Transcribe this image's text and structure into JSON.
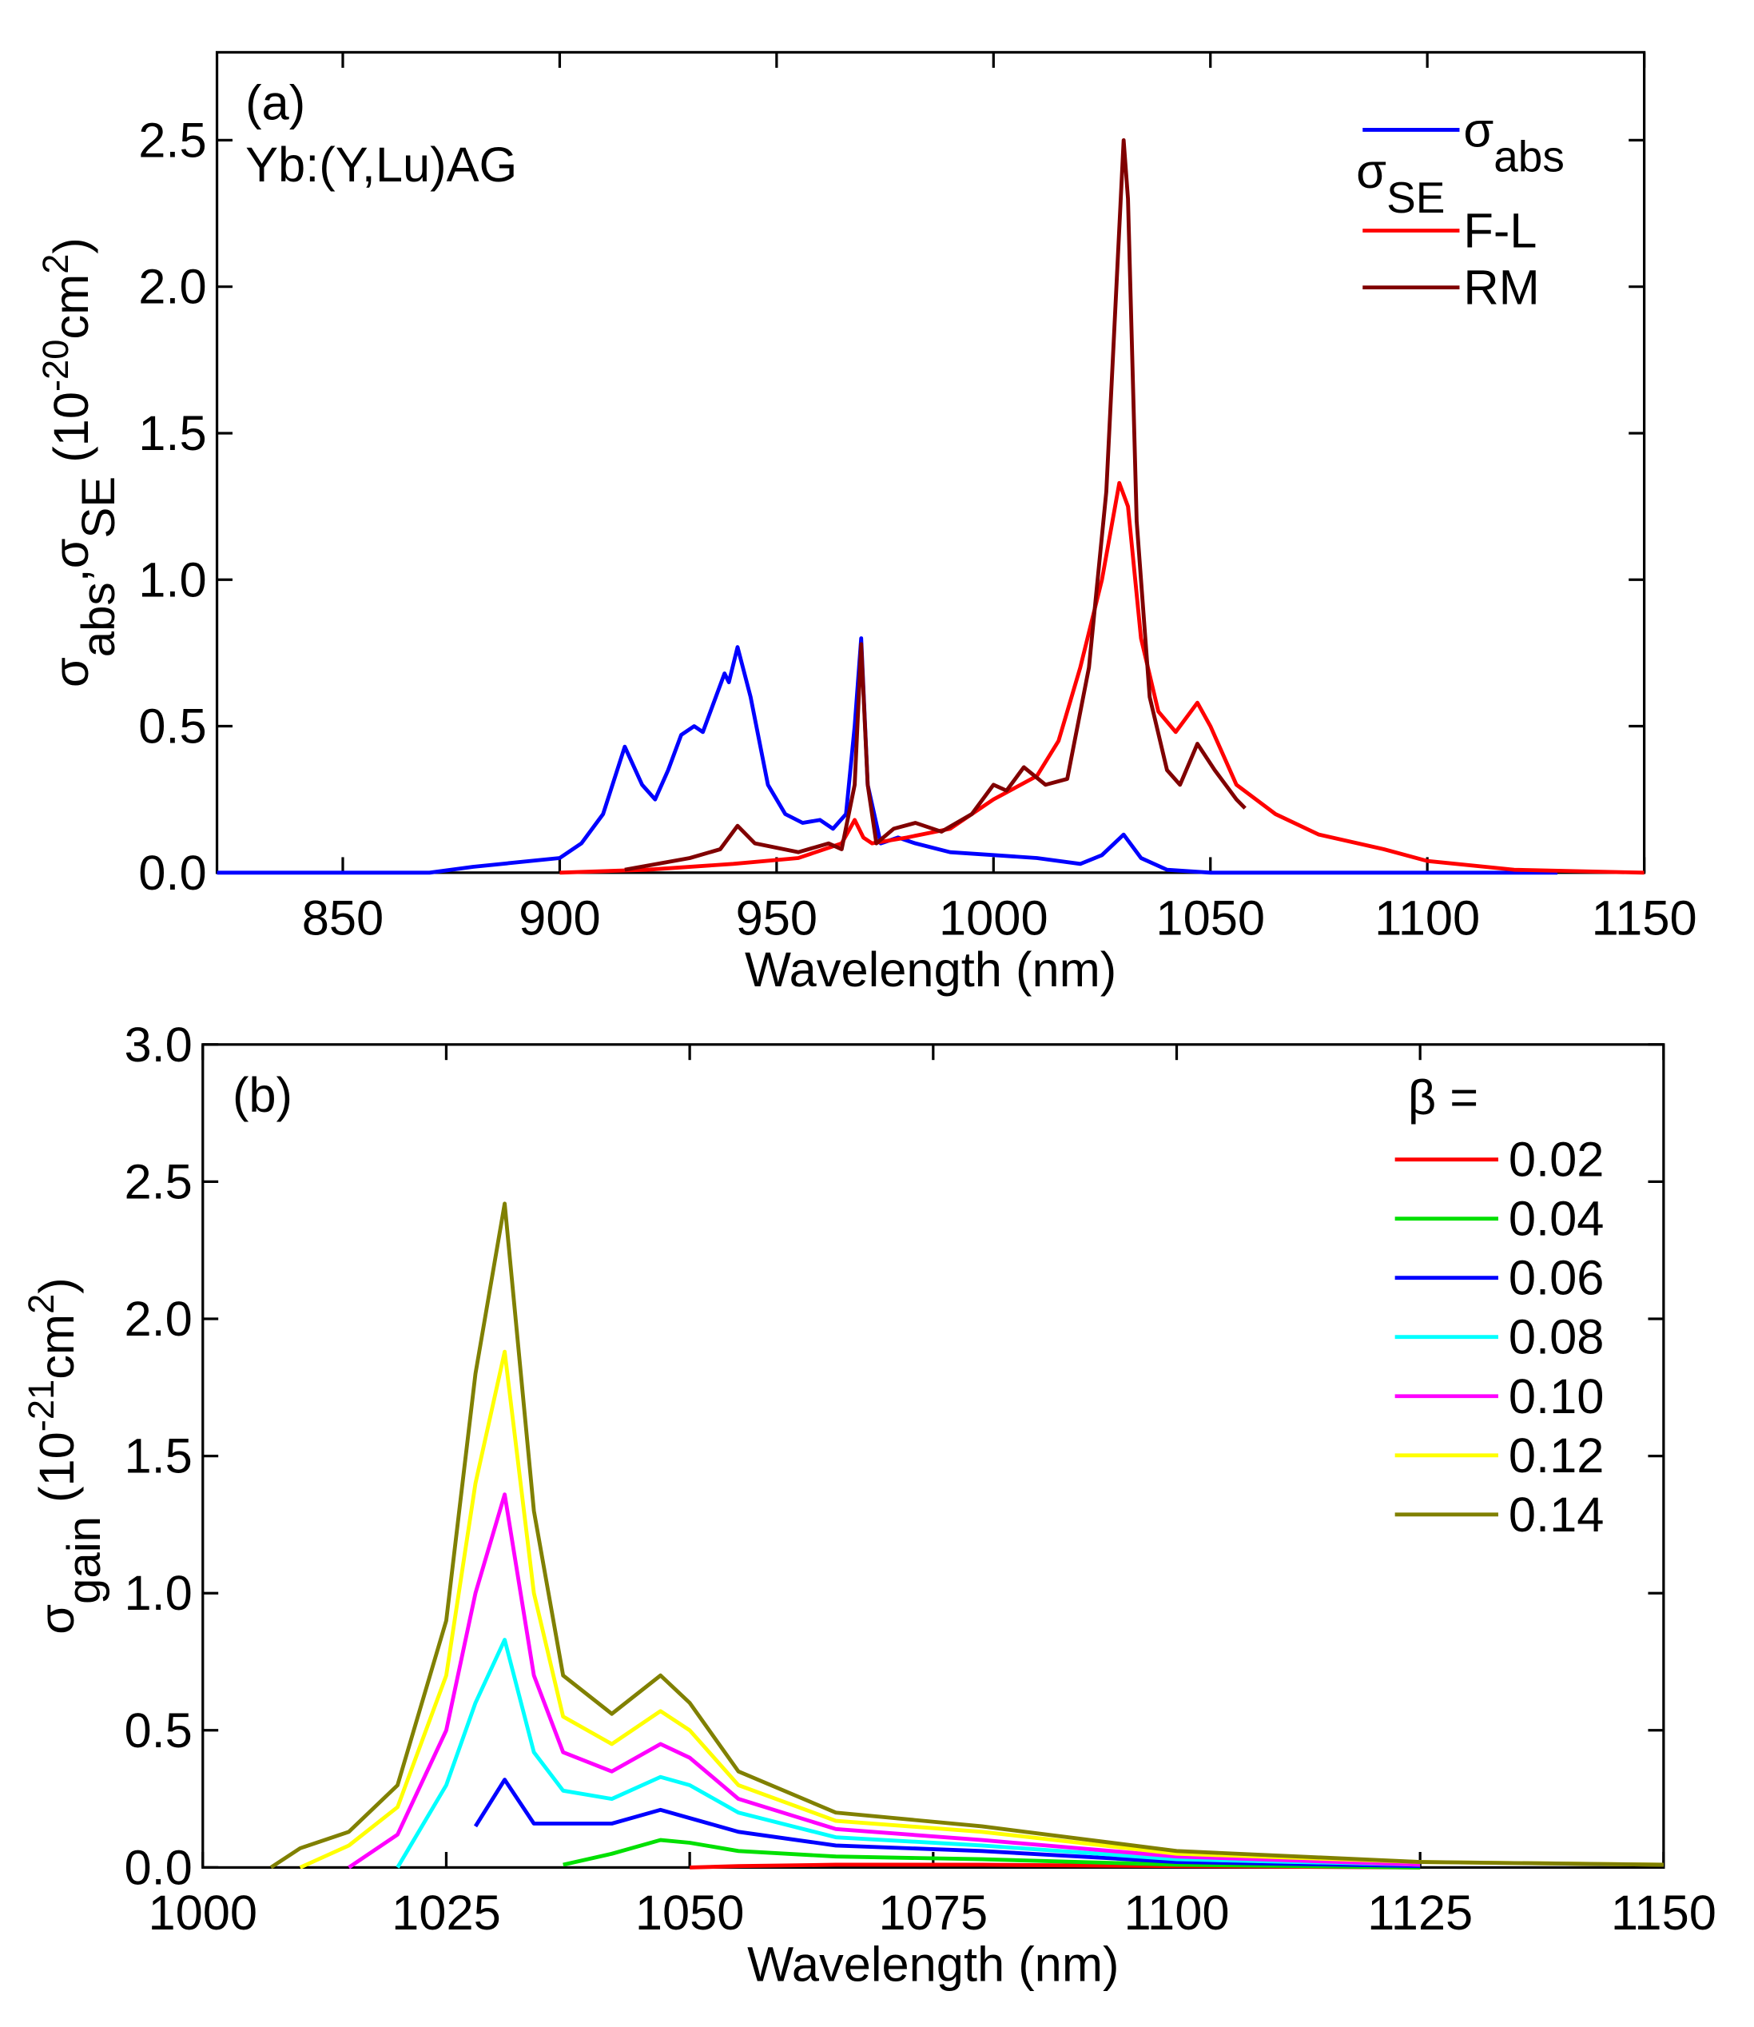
{
  "chart_data": [
    {
      "type": "line",
      "annotations": [
        "(a)",
        "Yb:(Y,Lu)AG"
      ],
      "xlabel": "Wavelength (nm)",
      "ylabel": [
        {
          "text": "σ"
        },
        {
          "text": "abs",
          "sub": true
        },
        {
          "text": ",σ"
        },
        {
          "text": "SE",
          "sub": true
        },
        {
          "text": " (10"
        },
        {
          "text": "-20",
          "sup": true
        },
        {
          "text": "cm"
        },
        {
          "text": "2",
          "sup": true
        },
        {
          "text": ")"
        }
      ],
      "xlim": [
        821,
        1150
      ],
      "ylim": [
        0,
        2.8
      ],
      "xticks": [
        850,
        900,
        950,
        1000,
        1050,
        1100,
        1150
      ],
      "yticks": [
        {
          "value": 0,
          "label": "0.0"
        },
        0.5,
        {
          "value": 1,
          "label": "1.0"
        },
        1.5,
        {
          "value": 2,
          "label": "2.0"
        },
        2.5
      ],
      "legend": "top right",
      "legend_title": "σSE",
      "series": [
        {
          "name": "σabs",
          "color": "#0000ff",
          "x": [
            821,
            870,
            880,
            900,
            905,
            910,
            915,
            919,
            922,
            925,
            928,
            931,
            933,
            936,
            938,
            939,
            941,
            944,
            948,
            952,
            956,
            960,
            963,
            966,
            968,
            969.5,
            971,
            974,
            978,
            982,
            990,
            1000,
            1010,
            1020,
            1025,
            1030,
            1034,
            1040,
            1050,
            1100,
            1130
          ],
          "values": [
            0,
            0,
            0.02,
            0.05,
            0.1,
            0.2,
            0.43,
            0.3,
            0.25,
            0.35,
            0.47,
            0.5,
            0.48,
            0.6,
            0.68,
            0.65,
            0.77,
            0.6,
            0.3,
            0.2,
            0.17,
            0.18,
            0.15,
            0.2,
            0.5,
            0.8,
            0.3,
            0.1,
            0.12,
            0.1,
            0.07,
            0.06,
            0.05,
            0.03,
            0.06,
            0.13,
            0.05,
            0.01,
            0,
            0,
            0
          ]
        },
        {
          "name": "F-L",
          "color": "#ff0000",
          "x": [
            900,
            920,
            940,
            955,
            965,
            968,
            970,
            972,
            980,
            990,
            1000,
            1010,
            1015,
            1020,
            1025,
            1029,
            1031,
            1034,
            1038,
            1042,
            1047,
            1050,
            1056,
            1065,
            1075,
            1090,
            1100,
            1120,
            1150
          ],
          "values": [
            0,
            0.01,
            0.03,
            0.05,
            0.1,
            0.18,
            0.12,
            0.1,
            0.12,
            0.15,
            0.25,
            0.33,
            0.45,
            0.7,
            1.0,
            1.33,
            1.25,
            0.8,
            0.55,
            0.48,
            0.58,
            0.5,
            0.3,
            0.2,
            0.13,
            0.08,
            0.04,
            0.01,
            0
          ]
        },
        {
          "name": "RM",
          "color": "#800000",
          "x": [
            915,
            930,
            937,
            941,
            945,
            955,
            962,
            965,
            968,
            969.5,
            971,
            973,
            977,
            982,
            988,
            995,
            1000,
            1003,
            1007,
            1012,
            1017,
            1022,
            1026,
            1030,
            1031,
            1033,
            1036,
            1040,
            1043,
            1047,
            1051,
            1056,
            1058
          ],
          "values": [
            0.01,
            0.05,
            0.08,
            0.16,
            0.1,
            0.07,
            0.1,
            0.08,
            0.3,
            0.78,
            0.3,
            0.1,
            0.15,
            0.17,
            0.14,
            0.2,
            0.3,
            0.28,
            0.36,
            0.3,
            0.32,
            0.7,
            1.3,
            2.5,
            2.3,
            1.2,
            0.6,
            0.35,
            0.3,
            0.44,
            0.35,
            0.25,
            0.22
          ]
        }
      ]
    },
    {
      "type": "line",
      "annotations": [
        "(b)"
      ],
      "xlabel": "Wavelength (nm)",
      "ylabel": [
        {
          "text": "σ"
        },
        {
          "text": "gain",
          "sub": true
        },
        {
          "text": " (10"
        },
        {
          "text": "-21",
          "sup": true
        },
        {
          "text": "cm"
        },
        {
          "text": "2",
          "sup": true
        },
        {
          "text": ")"
        }
      ],
      "xlim": [
        1000,
        1150
      ],
      "ylim": [
        0,
        3
      ],
      "xticks": [
        1000,
        1025,
        1050,
        1075,
        1100,
        1125,
        1150
      ],
      "yticks": [
        {
          "value": 0,
          "label": "0.0"
        },
        0.5,
        {
          "value": 1,
          "label": "1.0"
        },
        1.5,
        {
          "value": 2,
          "label": "2.0"
        },
        2.5,
        {
          "value": 3,
          "label": "3.0"
        }
      ],
      "legend": "top right",
      "legend_title": "β =",
      "x": [
        1007,
        1010,
        1015,
        1020,
        1025,
        1028,
        1031,
        1034,
        1037,
        1042,
        1047,
        1050,
        1055,
        1065,
        1080,
        1100,
        1125,
        1150
      ],
      "series": [
        {
          "name": "0.02",
          "color": "#ff0000",
          "values": [
            null,
            null,
            null,
            null,
            null,
            null,
            null,
            null,
            null,
            null,
            null,
            0,
            0.005,
            0.01,
            0.01,
            0.005,
            0,
            null
          ]
        },
        {
          "name": "0.04",
          "color": "#00e000",
          "values": [
            null,
            null,
            null,
            null,
            null,
            null,
            null,
            null,
            0.01,
            0.05,
            0.1,
            0.09,
            0.06,
            0.04,
            0.03,
            0.01,
            0,
            null
          ]
        },
        {
          "name": "0.06",
          "color": "#0000ff",
          "values": [
            null,
            null,
            null,
            null,
            null,
            0.15,
            0.32,
            0.16,
            0.16,
            0.16,
            0.21,
            0.18,
            0.13,
            0.08,
            0.06,
            0.02,
            0.005,
            null
          ]
        },
        {
          "name": "0.08",
          "color": "#00ffff",
          "values": [
            null,
            null,
            null,
            0,
            0.3,
            0.6,
            0.83,
            0.42,
            0.28,
            0.25,
            0.33,
            0.3,
            0.2,
            0.11,
            0.08,
            0.03,
            0.01,
            null
          ]
        },
        {
          "name": "0.10",
          "color": "#ff00ff",
          "values": [
            null,
            null,
            0,
            0.12,
            0.5,
            1.0,
            1.36,
            0.7,
            0.42,
            0.35,
            0.45,
            0.4,
            0.25,
            0.14,
            0.1,
            0.04,
            0.01,
            null
          ]
        },
        {
          "name": "0.12",
          "color": "#ffff00",
          "values": [
            null,
            0,
            0.08,
            0.22,
            0.7,
            1.4,
            1.88,
            1.0,
            0.55,
            0.45,
            0.57,
            0.5,
            0.3,
            0.17,
            0.13,
            0.05,
            0.02,
            0.01
          ]
        },
        {
          "name": "0.14",
          "color": "#808000",
          "values": [
            0,
            0.07,
            0.13,
            0.3,
            0.9,
            1.8,
            2.42,
            1.3,
            0.7,
            0.56,
            0.7,
            0.6,
            0.35,
            0.2,
            0.15,
            0.06,
            0.02,
            0.01
          ]
        }
      ]
    }
  ]
}
